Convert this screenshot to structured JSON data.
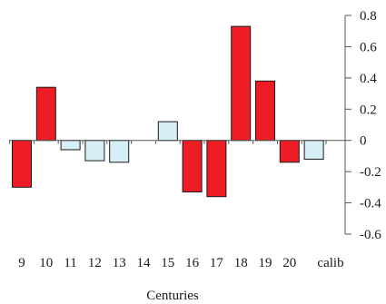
{
  "chart_data": {
    "type": "bar",
    "xlabel": "Centuries",
    "ylabel": "",
    "ylim": [
      -0.6,
      0.8
    ],
    "yticks": [
      0.8,
      0.6,
      0.4,
      0.2,
      0,
      -0.2,
      -0.4,
      -0.6
    ],
    "ytick_labels": [
      "0.8",
      "0.6",
      "0.4",
      "0.2",
      "0",
      "-0.2",
      "-0.4",
      "-0.6"
    ],
    "categories": [
      "9",
      "10",
      "11",
      "12",
      "13",
      "14",
      "15",
      "16",
      "17",
      "18",
      "19",
      "20",
      "calib"
    ],
    "values": [
      -0.3,
      0.34,
      -0.06,
      -0.13,
      -0.14,
      0,
      0.12,
      -0.33,
      -0.36,
      0.73,
      0.38,
      -0.14,
      -0.12
    ],
    "bar_colors": [
      "#ee1c24",
      "#ee1c24",
      "#d6eef5",
      "#d6eef5",
      "#d6eef5",
      "#d6eef5",
      "#d6eef5",
      "#ee1c24",
      "#ee1c24",
      "#ee1c24",
      "#ee1c24",
      "#ee1c24",
      "#d6eef5"
    ],
    "grid": false,
    "y_axis_side": "right"
  }
}
